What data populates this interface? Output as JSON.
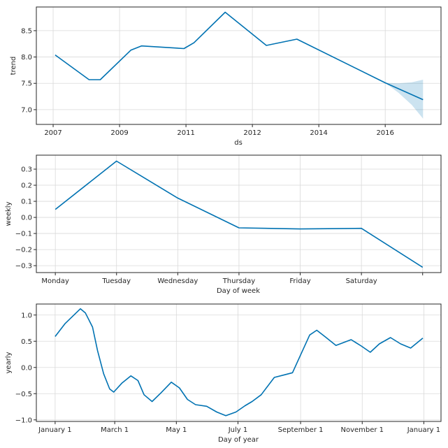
{
  "chart_data": [
    {
      "type": "line",
      "name": "trend",
      "xlabel": "ds",
      "ylabel": "trend",
      "x_unit": "tick-index (labels below)",
      "xlim": [
        -0.253,
        5.84
      ],
      "ylim": [
        6.72,
        8.95
      ],
      "xticks": [
        0,
        1,
        2,
        3,
        4,
        5
      ],
      "xtick_labels": [
        "2007",
        "2009",
        "2011",
        "2012",
        "2014",
        "2016"
      ],
      "yticks": [
        7.0,
        7.5,
        8.0,
        8.5
      ],
      "ytick_labels": [
        "7.0",
        "7.5",
        "8.0",
        "8.5"
      ],
      "grid": true,
      "series": [
        {
          "name": "trend",
          "x": [
            0.03,
            0.54,
            0.71,
            1.17,
            1.33,
            1.97,
            2.12,
            2.59,
            3.21,
            3.67,
            5.0,
            5.57
          ],
          "y": [
            8.04,
            7.57,
            7.57,
            8.13,
            8.21,
            8.16,
            8.27,
            8.85,
            8.22,
            8.34,
            7.51,
            7.19
          ]
        }
      ],
      "uncertainty_band": {
        "x": [
          5.0,
          5.2,
          5.4,
          5.57
        ],
        "upper": [
          7.51,
          7.5,
          7.52,
          7.57
        ],
        "lower": [
          7.51,
          7.32,
          7.09,
          6.83
        ]
      }
    },
    {
      "type": "line",
      "name": "weekly",
      "xlabel": "Day of week",
      "ylabel": "weekly",
      "categories": [
        "Monday",
        "Tuesday",
        "Wednesday",
        "Thursday",
        "Friday",
        "Saturday",
        ""
      ],
      "xlim": [
        -0.31,
        6.3
      ],
      "ylim": [
        -0.343,
        0.387
      ],
      "yticks": [
        -0.3,
        -0.2,
        -0.1,
        0.0,
        0.1,
        0.2,
        0.3
      ],
      "ytick_labels": [
        "−0.3",
        "−0.2",
        "−0.1",
        "0.0",
        "0.1",
        "0.2",
        "0.3"
      ],
      "grid": true,
      "series": [
        {
          "name": "weekly",
          "values": [
            0.05,
            0.35,
            0.12,
            -0.065,
            -0.072,
            -0.068,
            -0.31
          ]
        }
      ]
    },
    {
      "type": "line",
      "name": "yearly",
      "xlabel": "Day of year",
      "ylabel": "yearly",
      "x_unit": "day of year",
      "xlim": [
        -18.6,
        382
      ],
      "ylim": [
        -1.03,
        1.21
      ],
      "xticks": [
        0,
        59,
        120,
        181,
        243,
        304,
        365
      ],
      "xtick_labels": [
        "January 1",
        "March 1",
        "May 1",
        "July 1",
        "September 1",
        "November 1",
        "January 1"
      ],
      "yticks": [
        -1.0,
        -0.5,
        0.0,
        0.5,
        1.0
      ],
      "ytick_labels": [
        "−1.0",
        "−0.5",
        "0.0",
        "0.5",
        "1.0"
      ],
      "grid": true,
      "series": [
        {
          "name": "yearly",
          "x": [
            0,
            10,
            25,
            30,
            37,
            42,
            48,
            54,
            58,
            66,
            75,
            82,
            88,
            96,
            105,
            115,
            123,
            131,
            139,
            150,
            160,
            169,
            179,
            188,
            195,
            204,
            217,
            227,
            235,
            243,
            252,
            259,
            267,
            278,
            293,
            303,
            312,
            321,
            332,
            342,
            352,
            364
          ],
          "y": [
            0.59,
            0.84,
            1.12,
            1.04,
            0.77,
            0.32,
            -0.12,
            -0.41,
            -0.47,
            -0.3,
            -0.16,
            -0.25,
            -0.52,
            -0.65,
            -0.48,
            -0.28,
            -0.39,
            -0.61,
            -0.71,
            -0.74,
            -0.85,
            -0.92,
            -0.85,
            -0.73,
            -0.65,
            -0.52,
            -0.19,
            -0.14,
            -0.1,
            0.24,
            0.62,
            0.71,
            0.59,
            0.42,
            0.53,
            0.41,
            0.29,
            0.45,
            0.57,
            0.45,
            0.37,
            0.56
          ]
        }
      ]
    }
  ],
  "colors": {
    "line": "#0072B2",
    "band": "#0072B2",
    "grid": "#d9d9d9",
    "frame": "#262626"
  }
}
